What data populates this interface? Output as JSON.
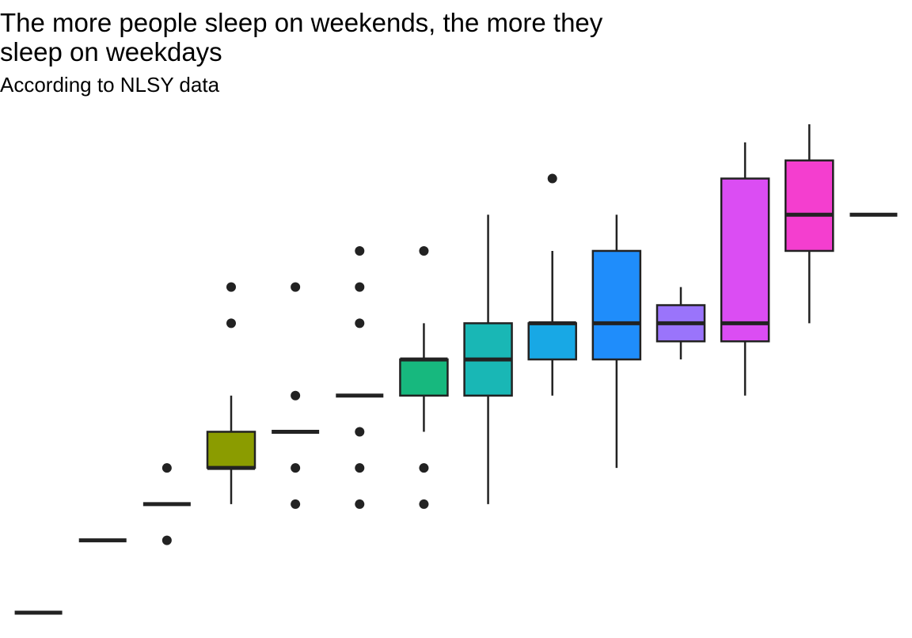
{
  "chart_data": {
    "type": "boxplot",
    "title": "The more people sleep on weekends, the more they\n sleep on weekdays",
    "subtitle": "According to NLSY data",
    "xlabel": "",
    "ylabel": "",
    "grid": false,
    "legend": "none",
    "y_range": [
      0,
      13.5
    ],
    "groups": [
      {
        "id": "g1",
        "color": "#F8766D",
        "min": 0,
        "q1": 0,
        "median": 0,
        "q3": 0,
        "max": 0,
        "outliers": []
      },
      {
        "id": "g2",
        "color": "#E58700",
        "min": 2,
        "q1": 2,
        "median": 2,
        "q3": 2,
        "max": 2,
        "outliers": []
      },
      {
        "id": "g3",
        "color": "#C99800",
        "min": 3,
        "q1": 3,
        "median": 3,
        "q3": 3,
        "max": 3,
        "outliers": [
          2,
          4
        ]
      },
      {
        "id": "g4",
        "color": "#8B9C00",
        "min": 3,
        "q1": 4,
        "median": 4,
        "q3": 5,
        "max": 6,
        "outliers": [
          8,
          9
        ]
      },
      {
        "id": "g5",
        "color": "#5BAE00",
        "min": 5,
        "q1": 5,
        "median": 5,
        "q3": 5,
        "max": 5,
        "outliers": [
          3,
          4,
          6,
          9
        ]
      },
      {
        "id": "g6",
        "color": "#00BA38",
        "min": 6,
        "q1": 6,
        "median": 6,
        "q3": 6,
        "max": 6,
        "outliers": [
          3,
          4,
          5,
          8,
          9,
          10
        ]
      },
      {
        "id": "g7",
        "color": "#17B87E",
        "min": 5,
        "q1": 6,
        "median": 7,
        "q3": 7,
        "max": 8,
        "outliers": [
          3,
          4,
          10
        ]
      },
      {
        "id": "g8",
        "color": "#19B7B5",
        "min": 3,
        "q1": 6,
        "median": 7,
        "q3": 8,
        "max": 11,
        "outliers": []
      },
      {
        "id": "g9",
        "color": "#18A8E5",
        "min": 6,
        "q1": 7,
        "median": 8,
        "q3": 8,
        "max": 10,
        "outliers": [
          12
        ]
      },
      {
        "id": "g10",
        "color": "#1F8DFB",
        "min": 4,
        "q1": 7,
        "median": 8,
        "q3": 10,
        "max": 11,
        "outliers": []
      },
      {
        "id": "g11",
        "color": "#9A74FB",
        "min": 7,
        "q1": 7.5,
        "median": 8,
        "q3": 8.5,
        "max": 9,
        "outliers": []
      },
      {
        "id": "g12",
        "color": "#DB4DF3",
        "min": 6,
        "q1": 7.5,
        "median": 8,
        "q3": 12,
        "max": 13,
        "outliers": []
      },
      {
        "id": "g13",
        "color": "#F43ECF",
        "min": 8,
        "q1": 10,
        "median": 11,
        "q3": 12.5,
        "max": 13.5,
        "outliers": []
      },
      {
        "id": "g14",
        "color": "#FF61C3",
        "min": 11,
        "q1": 11,
        "median": 11,
        "q3": 11,
        "max": 11,
        "outliers": []
      }
    ]
  }
}
